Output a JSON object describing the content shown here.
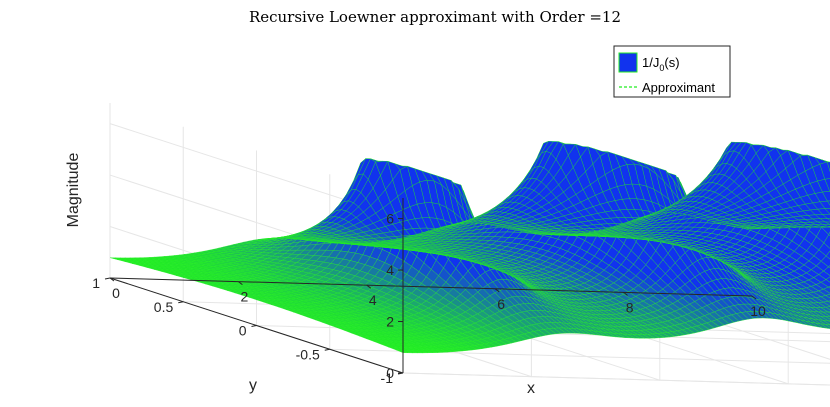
{
  "chart_data": {
    "type": "surface",
    "title": "Recursive Loewner approximant with Order =12",
    "xlabel": "x",
    "ylabel": "y",
    "zlabel": "Magnitude",
    "xlim": [
      0,
      10
    ],
    "ylim": [
      -1,
      1
    ],
    "zlim": [
      0,
      6.8
    ],
    "xticks": [
      0,
      2,
      4,
      6,
      8,
      10
    ],
    "yticks": [
      -1,
      -0.5,
      0,
      0.5,
      1
    ],
    "zticks": [
      0,
      2,
      4,
      6
    ],
    "xtick_labels": [
      "0",
      "2",
      "4",
      "6",
      "8",
      "10"
    ],
    "ytick_labels": [
      "-1",
      "-0.5",
      "0",
      "0.5",
      "1"
    ],
    "ztick_labels": [
      "0",
      "2",
      "4",
      "6"
    ],
    "grid": true,
    "legend_position": "top-right",
    "peaks": [
      {
        "x": 2.405,
        "y": 0,
        "z": 6.1
      },
      {
        "x": 5.52,
        "y": 0,
        "z": 5.6
      },
      {
        "x": 8.654,
        "y": 0,
        "z": 6.8
      }
    ],
    "series": [
      {
        "name": "1/J0(s)",
        "name_main": "1/J",
        "name_sub": "0",
        "name_tail": "(s)",
        "style": "surface",
        "color": "#1133ee"
      },
      {
        "name": "Approximant",
        "style": "mesh",
        "color": "#22ee22"
      }
    ]
  }
}
